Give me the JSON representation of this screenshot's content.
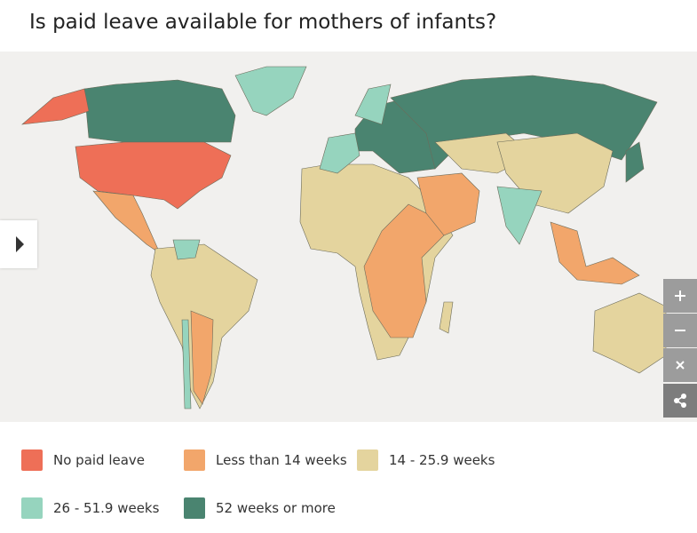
{
  "title": "Is paid leave available for mothers of infants?",
  "legend": [
    {
      "label": "No paid leave",
      "color": "#ee6f57"
    },
    {
      "label": "Less than 14 weeks",
      "color": "#f2a66b"
    },
    {
      "label": "14 - 25.9 weeks",
      "color": "#e4d49e"
    },
    {
      "label": "26 - 51.9 weeks",
      "color": "#96d4be"
    },
    {
      "label": "52 weeks or more",
      "color": "#4a8470"
    }
  ]
}
